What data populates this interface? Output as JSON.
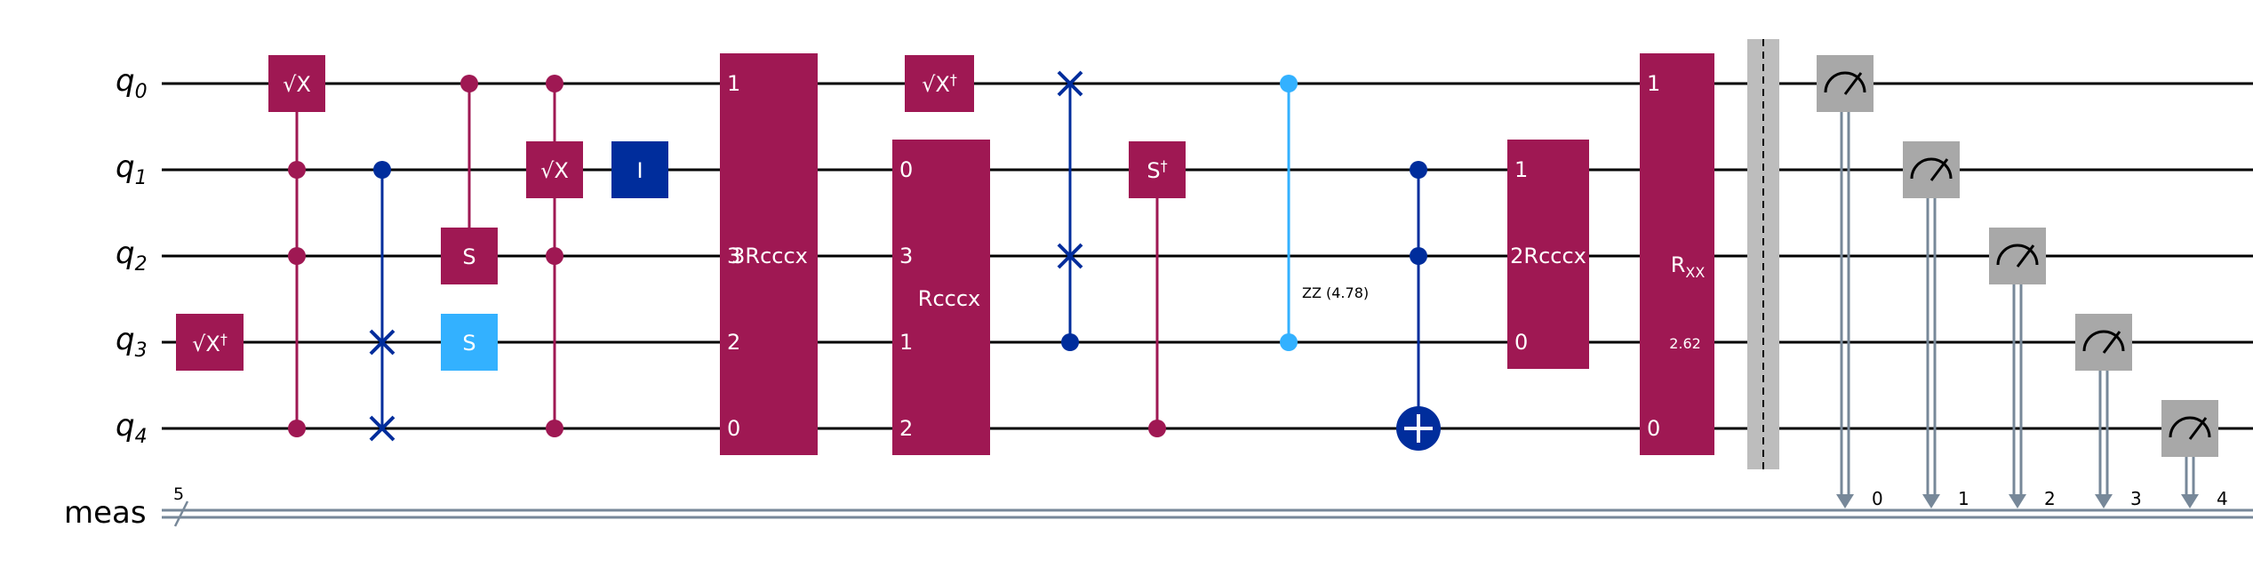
{
  "circuit": {
    "qubits": [
      {
        "base": "q",
        "sub": "0"
      },
      {
        "base": "q",
        "sub": "1"
      },
      {
        "base": "q",
        "sub": "2"
      },
      {
        "base": "q",
        "sub": "3"
      },
      {
        "base": "q",
        "sub": "4"
      }
    ],
    "classical_register": {
      "label": "meas",
      "width": "5"
    },
    "colors": {
      "wire": "#000000",
      "classical_wire": "#778899",
      "gate_magenta": "#9F1853",
      "gate_blue": "#002D9C",
      "gate_cyan": "#33B1FF",
      "measure_gray": "#A8A8A8",
      "barrier_gray": "#BDBDBD"
    },
    "gates": {
      "sx_q0": "√X",
      "sxdg_q3": "√X",
      "sxdg_q3_dagger": "†",
      "s_q2": "S",
      "s_q3": "S",
      "csx_target": "√X",
      "id_q1": "I",
      "rcccx_a_label": "3Rcccx",
      "rcccx_a_ports": [
        "1",
        "3",
        "2",
        "0"
      ],
      "sxdg_q0": "√X",
      "sxdg_q0_dagger": "†",
      "rcccx_b_label": "Rcccx",
      "rcccx_b_ports": [
        "0",
        "3",
        "1",
        "2"
      ],
      "sdg_q1": "S",
      "sdg_q1_dagger": "†",
      "zz_label": "ZZ (4.78)",
      "rcccx_c_label": "2Rcccx",
      "rcccx_c_ports": [
        "1",
        "0"
      ],
      "rxx_label": "R",
      "rxx_sub": "XX",
      "rxx_param": "2.62",
      "rxx_ports": [
        "1",
        "0"
      ]
    },
    "measure_bits": [
      "0",
      "1",
      "2",
      "3",
      "4"
    ]
  }
}
